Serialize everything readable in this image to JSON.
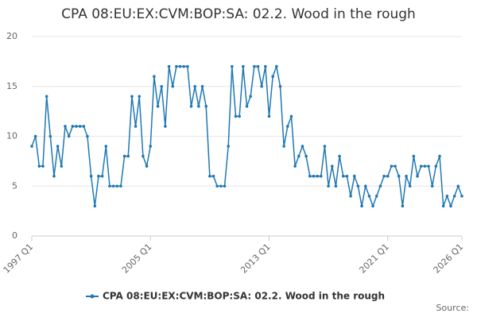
{
  "chart_data": {
    "type": "line",
    "title": "CPA 08:EU:EX:CVM:BOP:SA: 02.2. Wood in the rough",
    "categories": [
      "1997 Q1",
      null,
      null,
      null,
      null,
      null,
      null,
      null,
      null,
      null,
      null,
      null,
      null,
      null,
      null,
      null,
      null,
      null,
      null,
      null,
      null,
      null,
      null,
      null,
      null,
      null,
      null,
      null,
      null,
      null,
      null,
      null,
      "2005 Q1",
      null,
      null,
      null,
      null,
      null,
      null,
      null,
      null,
      null,
      null,
      null,
      null,
      null,
      null,
      null,
      null,
      null,
      null,
      null,
      null,
      null,
      null,
      null,
      null,
      null,
      null,
      null,
      null,
      null,
      null,
      null,
      "2013 Q1",
      null,
      null,
      null,
      null,
      null,
      null,
      null,
      null,
      null,
      null,
      null,
      null,
      null,
      null,
      null,
      null,
      null,
      null,
      null,
      null,
      null,
      null,
      null,
      null,
      null,
      null,
      null,
      null,
      null,
      null,
      null,
      "2021 Q1",
      null,
      null,
      null,
      null,
      null,
      null,
      null,
      null,
      null,
      null,
      null,
      null,
      null,
      null,
      null,
      null,
      null,
      null,
      null,
      "2026 Q1"
    ],
    "series": [
      {
        "name": "CPA 08:EU:EX:CVM:BOP:SA: 02.2. Wood in the rough",
        "color": "#1f78b4",
        "values": [
          9,
          10,
          7,
          7,
          14,
          10,
          6,
          9,
          7,
          11,
          10,
          11,
          11,
          11,
          11,
          10,
          6,
          3,
          6,
          6,
          9,
          5,
          5,
          5,
          5,
          8,
          8,
          14,
          11,
          14,
          8,
          7,
          9,
          16,
          13,
          15,
          11,
          17,
          15,
          17,
          17,
          17,
          17,
          13,
          15,
          13,
          15,
          13,
          6,
          6,
          5,
          5,
          5,
          9,
          17,
          12,
          12,
          17,
          13,
          14,
          17,
          17,
          15,
          17,
          12,
          16,
          17,
          15,
          9,
          11,
          12,
          7,
          8,
          9,
          8,
          6,
          6,
          6,
          6,
          9,
          5,
          7,
          5,
          8,
          6,
          6,
          4,
          6,
          5,
          3,
          5,
          4,
          3,
          4,
          5,
          6,
          6,
          7,
          7,
          6,
          3,
          6,
          5,
          8,
          6,
          7,
          7,
          7,
          5,
          7,
          8,
          3,
          4,
          3,
          4,
          5,
          4
        ]
      }
    ],
    "ylim": [
      0,
      20
    ],
    "yticks": [
      0,
      5,
      10,
      15,
      20
    ],
    "grid": true,
    "source": "Source:"
  }
}
